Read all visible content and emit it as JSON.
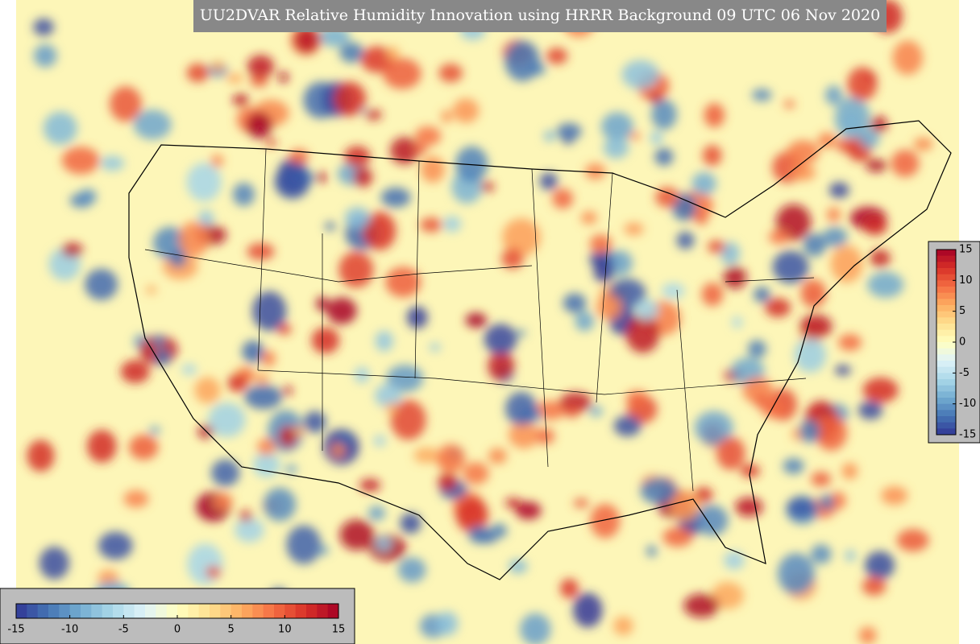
{
  "title": "UU2DVAR Relative Humidity Innovation using HRRR Background 09 UTC 06 Nov 2020",
  "horizontal_colorbar": {
    "lim": [
      -15,
      15
    ],
    "ticks": [
      -15,
      -10,
      -5,
      0,
      5,
      10,
      15
    ]
  },
  "vertical_colorbar": {
    "lim": [
      -15,
      15
    ],
    "ticks": [
      15,
      10,
      5,
      0,
      -5,
      -10,
      -15
    ]
  }
}
